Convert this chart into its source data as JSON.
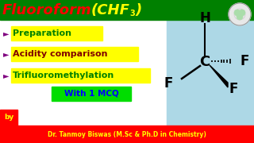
{
  "title_bg": "#008000",
  "title_color_fluoro": "#FF0000",
  "title_color_chf": "#FFFF00",
  "left_bg": "#FFFFFF",
  "right_bg": "#ADD8E6",
  "bullet_color": "#800080",
  "bullet_char": "►",
  "items": [
    "Preparation",
    "Acidity comparison",
    "Trifluoromethylation"
  ],
  "item_colors": [
    "#008000",
    "#800000",
    "#008000"
  ],
  "item_bg": "#FFFF00",
  "mcq_text": "With 1 MCQ",
  "mcq_bg": "#00DD00",
  "mcq_color": "#0000FF",
  "by_text": "by",
  "bottom_bg": "#FF0000",
  "bottom_text": "Dr. Tanmoy Biswas (M.Sc & Ph.D in Chemistry)",
  "bottom_color": "#FFFF00",
  "fig_width": 3.2,
  "fig_height": 1.8,
  "dpi": 100
}
